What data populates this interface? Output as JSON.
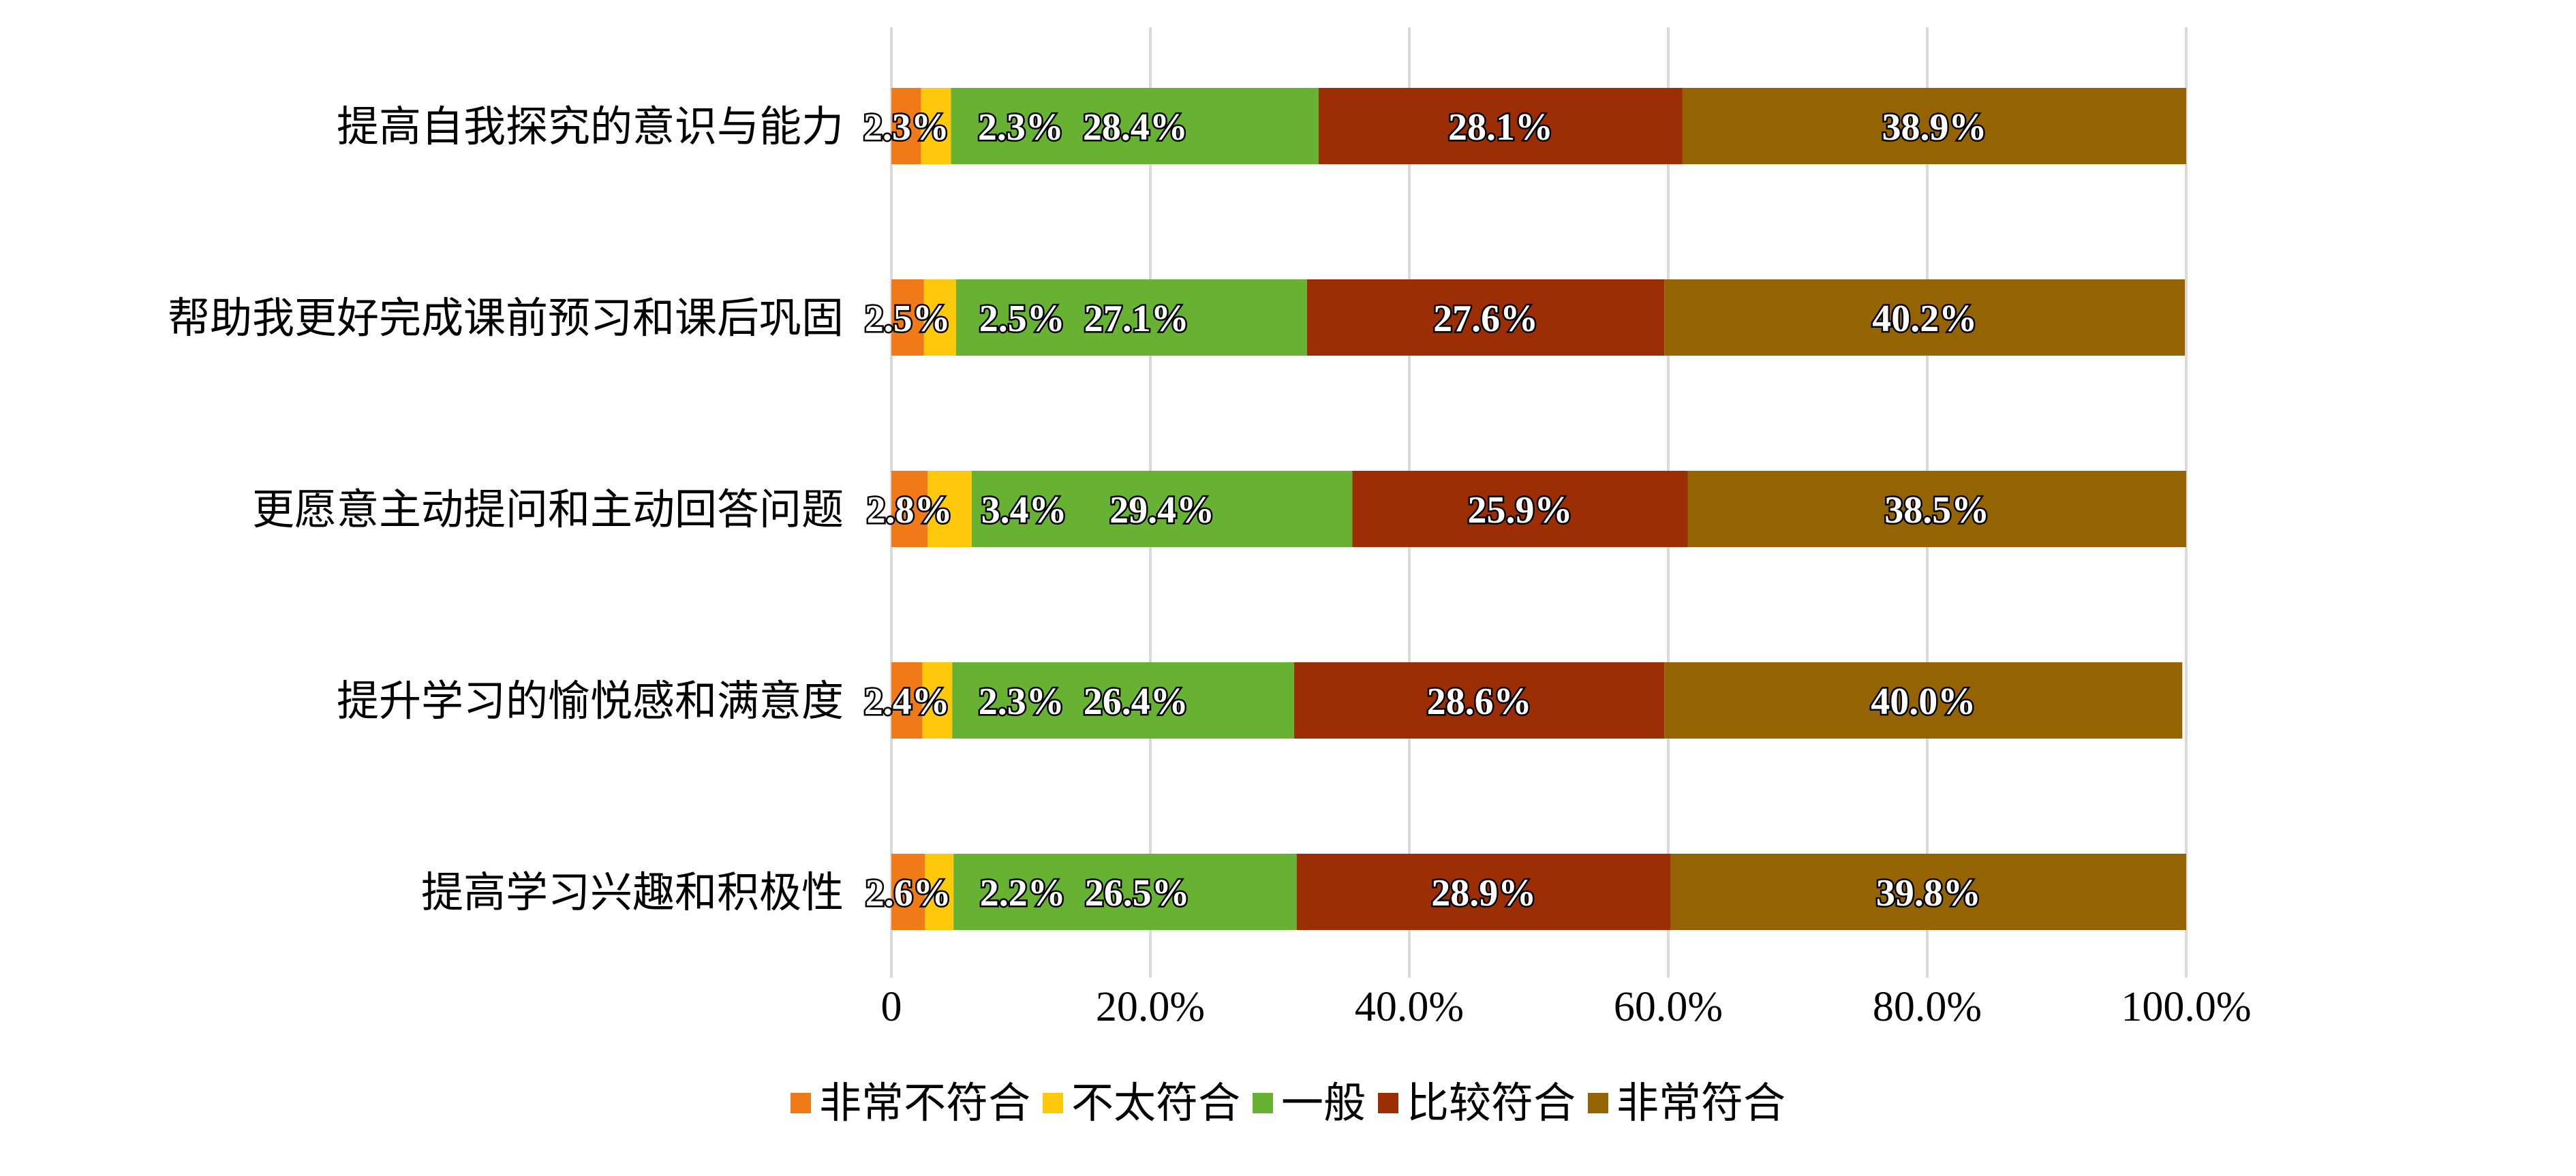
{
  "chart_data": {
    "type": "bar",
    "orientation": "horizontal",
    "stacked": true,
    "categories": [
      "提高自我探究的意识与能力",
      "帮助我更好完成课前预习和课后巩固",
      "更愿意主动提问和主动回答问题",
      "提升学习的愉悦感和满意度",
      "提高学习兴趣和积极性"
    ],
    "series": [
      {
        "name": "非常不符合",
        "color": "#f07a17",
        "values": [
          2.3,
          2.5,
          2.8,
          2.4,
          2.6
        ],
        "labels": [
          "2.3%",
          "2.5%",
          "2.8%",
          "2.4%",
          "2.6%"
        ]
      },
      {
        "name": "不太符合",
        "color": "#ffc80a",
        "values": [
          2.3,
          2.5,
          3.4,
          2.3,
          2.2
        ],
        "labels": [
          "2.3%",
          "2.5%",
          "3.4%",
          "2.3%",
          "2.2%"
        ]
      },
      {
        "name": "一般",
        "color": "#67b232",
        "values": [
          28.4,
          27.1,
          29.4,
          26.4,
          26.5
        ],
        "labels": [
          "28.4%",
          "27.1%",
          "29.4%",
          "26.4%",
          "26.5%"
        ]
      },
      {
        "name": "比较符合",
        "color": "#9c2e06",
        "values": [
          28.1,
          27.6,
          25.9,
          28.6,
          28.9
        ],
        "labels": [
          "28.1%",
          "27.6%",
          "25.9%",
          "28.6%",
          "28.9%"
        ]
      },
      {
        "name": "非常符合",
        "color": "#946403",
        "values": [
          38.9,
          40.2,
          38.5,
          40.0,
          39.8
        ],
        "labels": [
          "38.9%",
          "40.2%",
          "38.5%",
          "40.0%",
          "39.8%"
        ]
      }
    ],
    "xlim": [
      0,
      100
    ],
    "xticks": [
      0,
      20,
      40,
      60,
      80,
      100
    ],
    "xtick_labels": [
      "0",
      "20.0%",
      "40.0%",
      "60.0%",
      "80.0%",
      "100.0%"
    ],
    "grid": "vertical",
    "legend_position": "bottom"
  }
}
